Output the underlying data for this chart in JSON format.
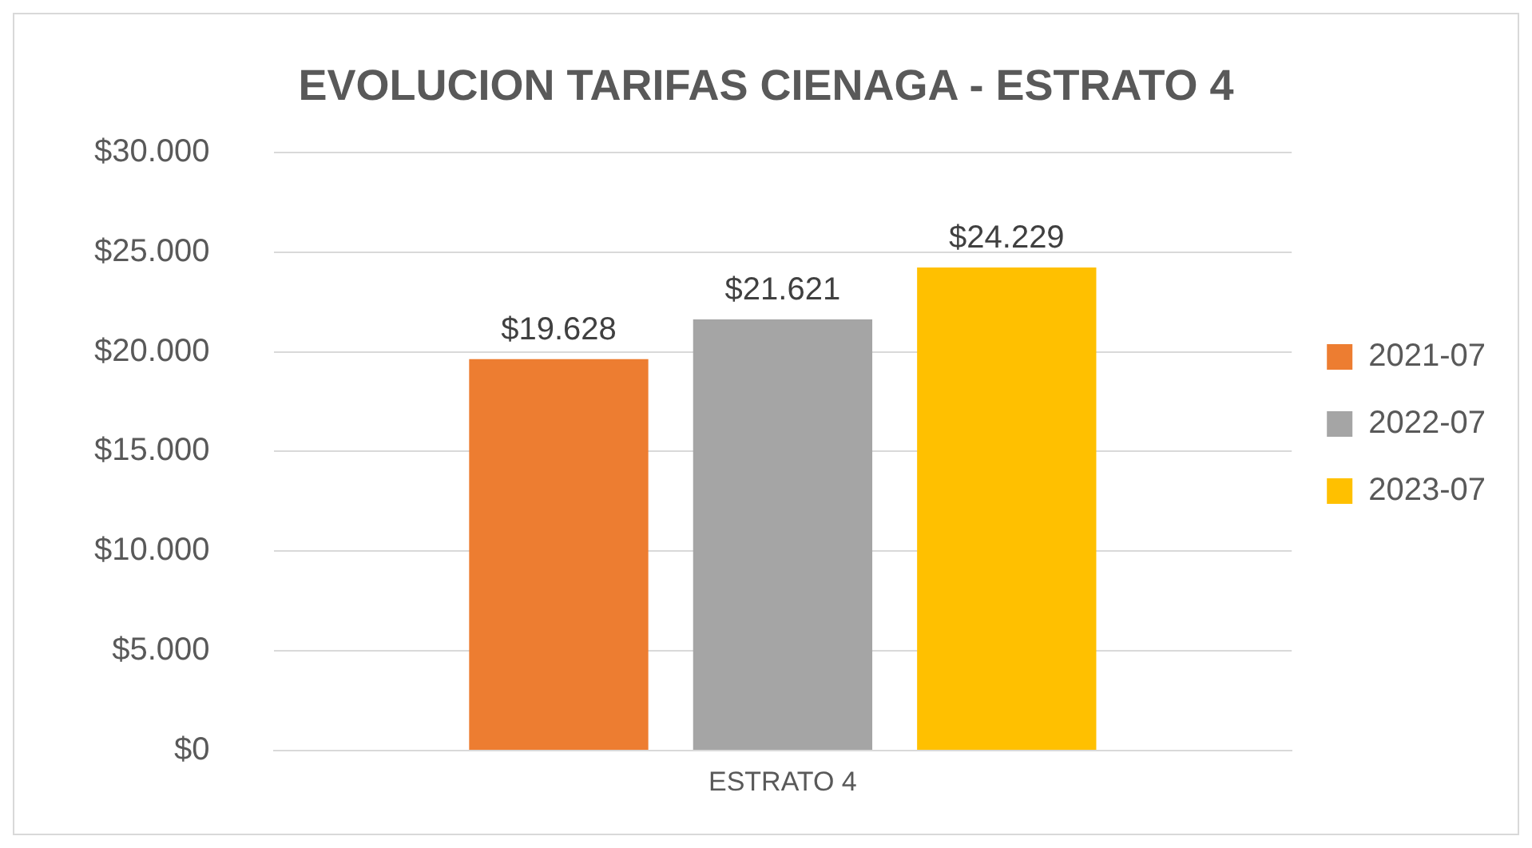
{
  "chart_data": {
    "type": "bar",
    "title": "EVOLUCION TARIFAS CIENAGA - ESTRATO 4",
    "categories": [
      "ESTRATO 4"
    ],
    "series": [
      {
        "name": "2021-07",
        "color": "#ed7d31",
        "values": [
          19628
        ],
        "value_labels": [
          "$19.628"
        ]
      },
      {
        "name": "2022-07",
        "color": "#a5a5a5",
        "values": [
          21621
        ],
        "value_labels": [
          "$21.621"
        ]
      },
      {
        "name": "2023-07",
        "color": "#ffc000",
        "values": [
          24229
        ],
        "value_labels": [
          "$24.229"
        ]
      }
    ],
    "ylim": [
      0,
      30000
    ],
    "yticks": [
      {
        "value": 0,
        "label": "$0"
      },
      {
        "value": 5000,
        "label": "$5.000"
      },
      {
        "value": 10000,
        "label": "$10.000"
      },
      {
        "value": 15000,
        "label": "$15.000"
      },
      {
        "value": 20000,
        "label": "$20.000"
      },
      {
        "value": 25000,
        "label": "$25.000"
      },
      {
        "value": 30000,
        "label": "$30.000"
      }
    ],
    "grid": "y",
    "legend": "right"
  }
}
